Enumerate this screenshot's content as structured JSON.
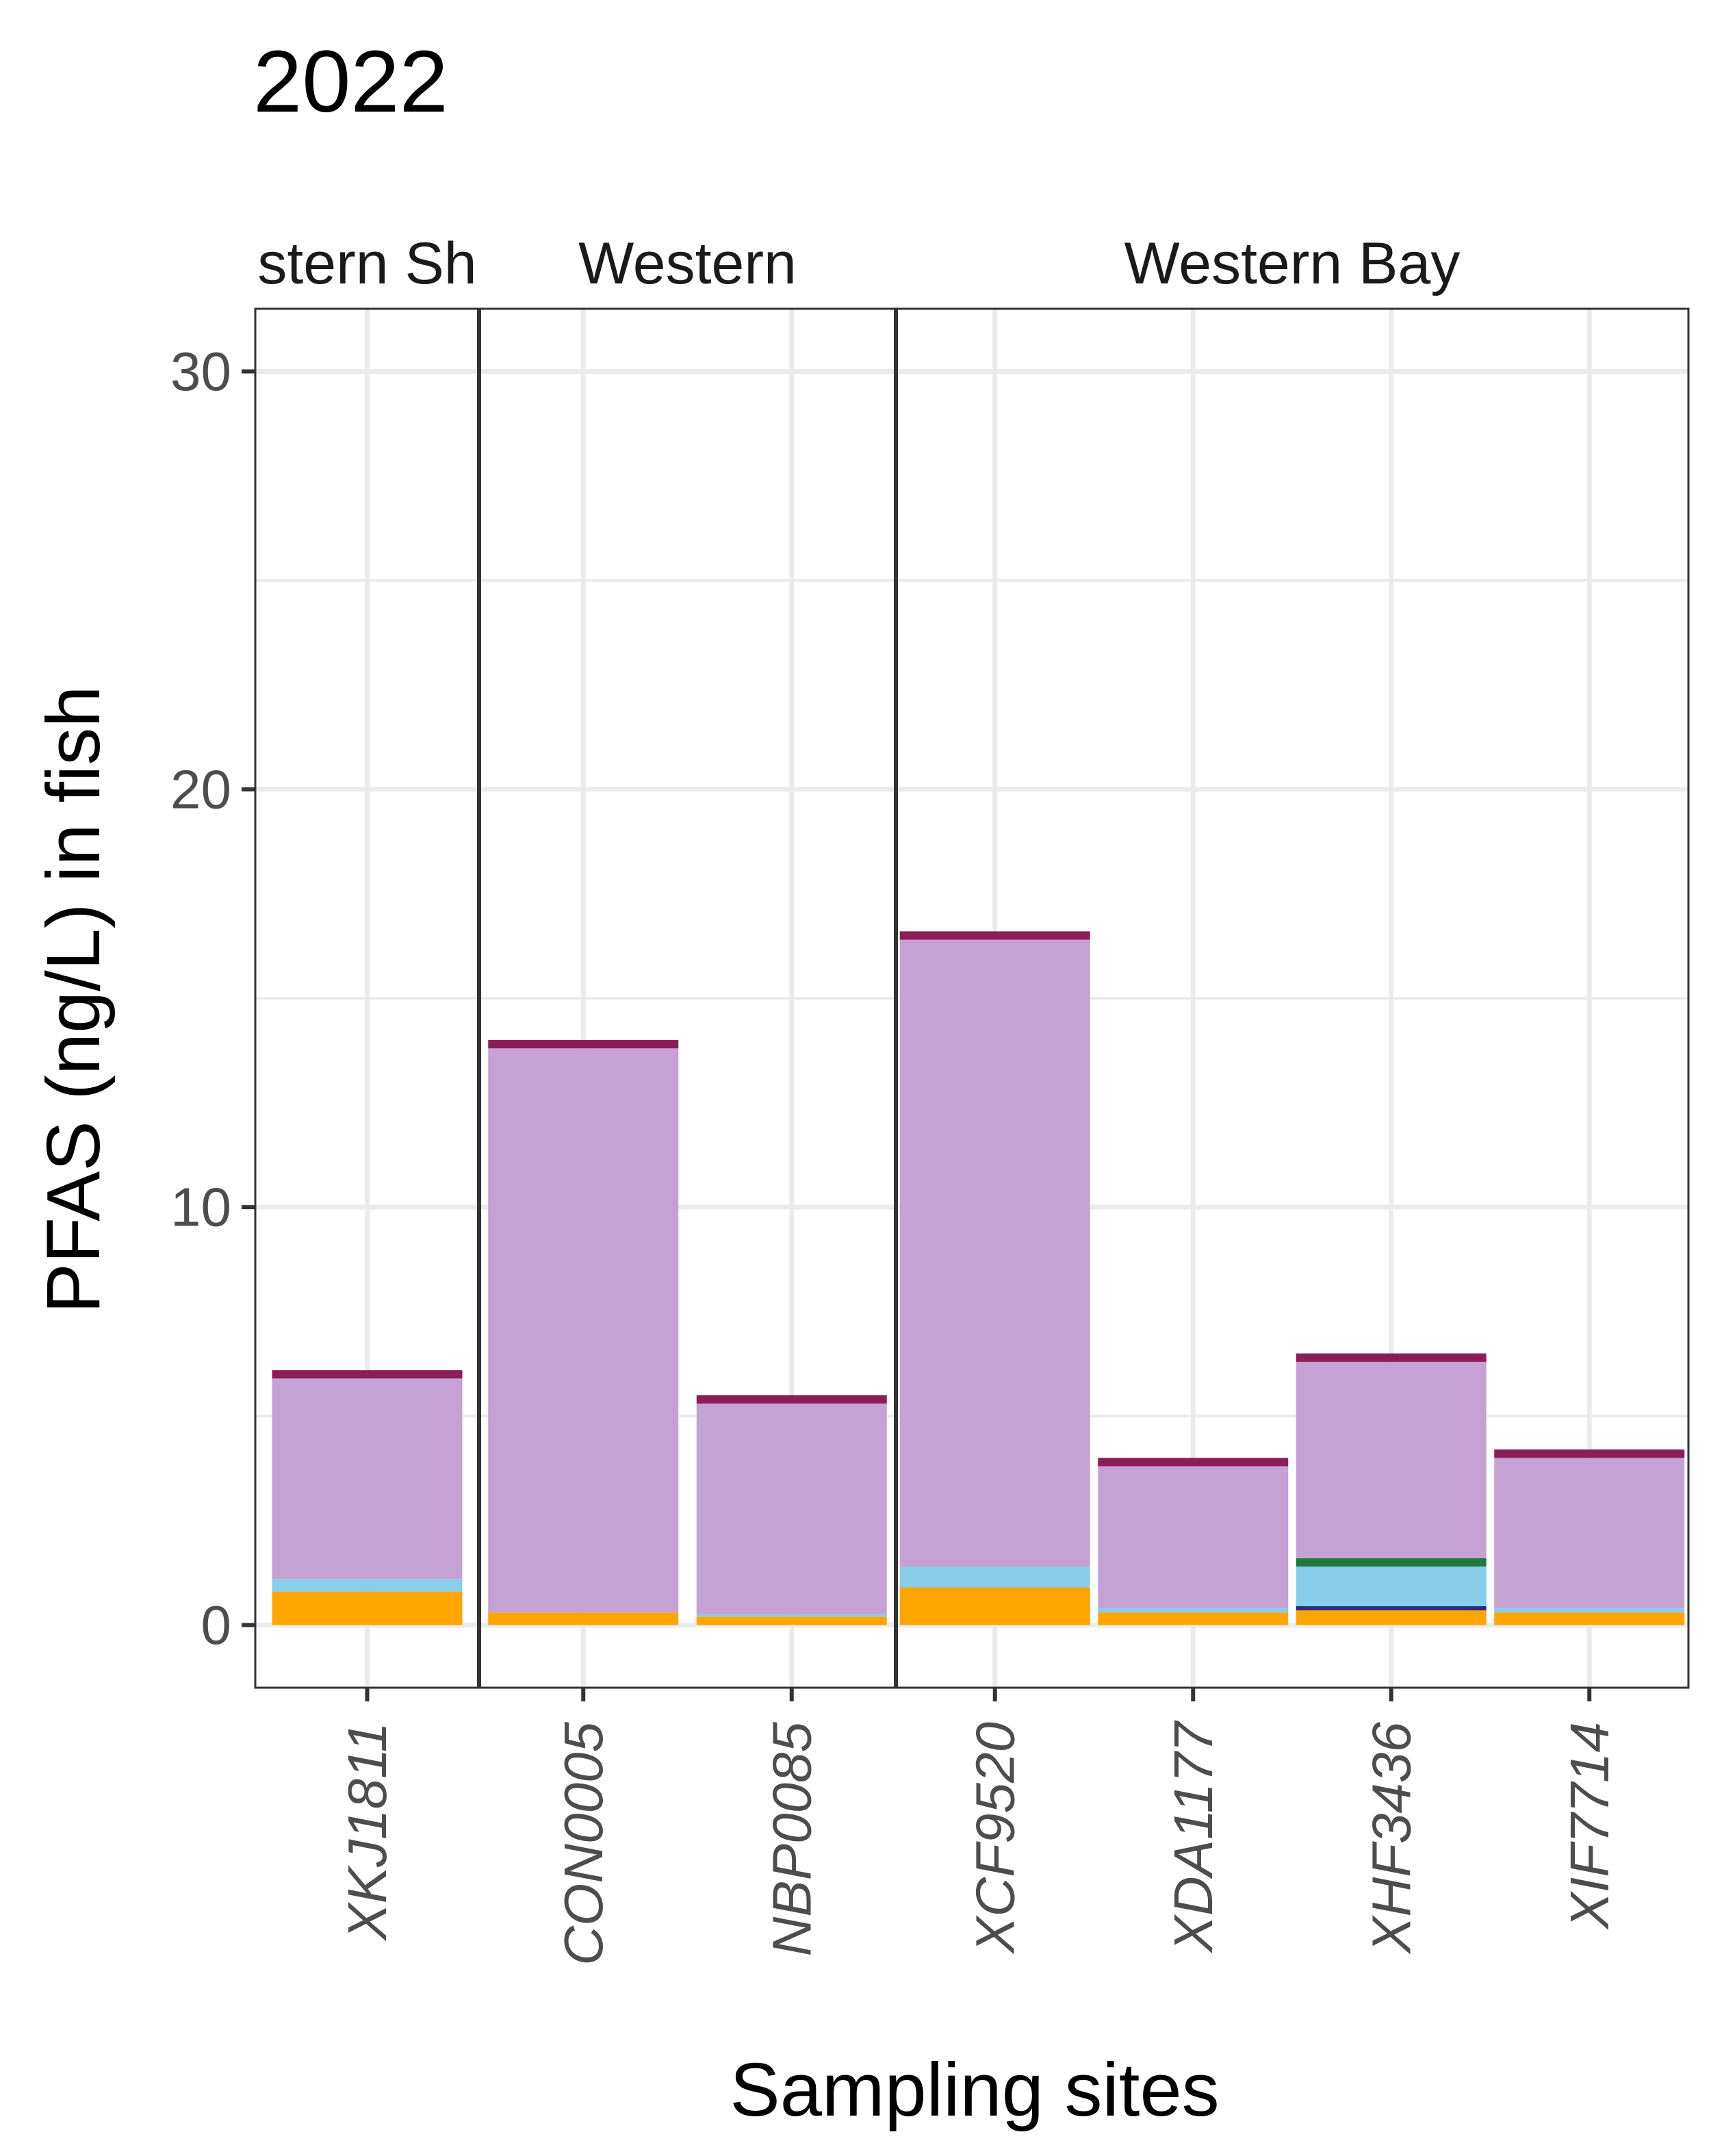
{
  "chart_data": {
    "type": "bar",
    "title": "2022",
    "xlabel": "Sampling sites",
    "ylabel": "PFAS (ng/L) in fish",
    "ylim": [
      -1.5,
      31.5
    ],
    "yticks": [
      0,
      10,
      20,
      30
    ],
    "grid": true,
    "stacked": true,
    "facets": [
      {
        "label": "stern Sh",
        "categories": [
          "XKJ1811"
        ]
      },
      {
        "label": "Western",
        "categories": [
          "CON0005",
          "NBP0085"
        ]
      },
      {
        "label": "Western Bay",
        "categories": [
          "XCF9520",
          "XDA1177",
          "XHF3436",
          "XIF7714"
        ]
      }
    ],
    "categories": [
      "XKJ1811",
      "CON0005",
      "NBP0085",
      "XCF9520",
      "XDA1177",
      "XHF3436",
      "XIF7714"
    ],
    "series": [
      {
        "color": "#FFA500",
        "values": [
          0.8,
          0.3,
          0.2,
          0.9,
          0.3,
          0.35,
          0.3
        ]
      },
      {
        "color": "#2B2F7A",
        "values": [
          0,
          0,
          0,
          0,
          0,
          0.1,
          0
        ]
      },
      {
        "color": "#87CEEB",
        "values": [
          0.3,
          0,
          0.05,
          0.5,
          0.1,
          0.95,
          0.1
        ]
      },
      {
        "color": "#1E7B3C",
        "values": [
          0,
          0,
          0,
          0,
          0,
          0.2,
          0
        ]
      },
      {
        "color": "#C6A1D4",
        "values": [
          4.8,
          13.5,
          5.05,
          15.0,
          3.4,
          4.7,
          3.6
        ]
      },
      {
        "color": "#8B1E57",
        "values": [
          0.2,
          0.2,
          0.2,
          0.2,
          0.2,
          0.2,
          0.2
        ]
      }
    ]
  }
}
